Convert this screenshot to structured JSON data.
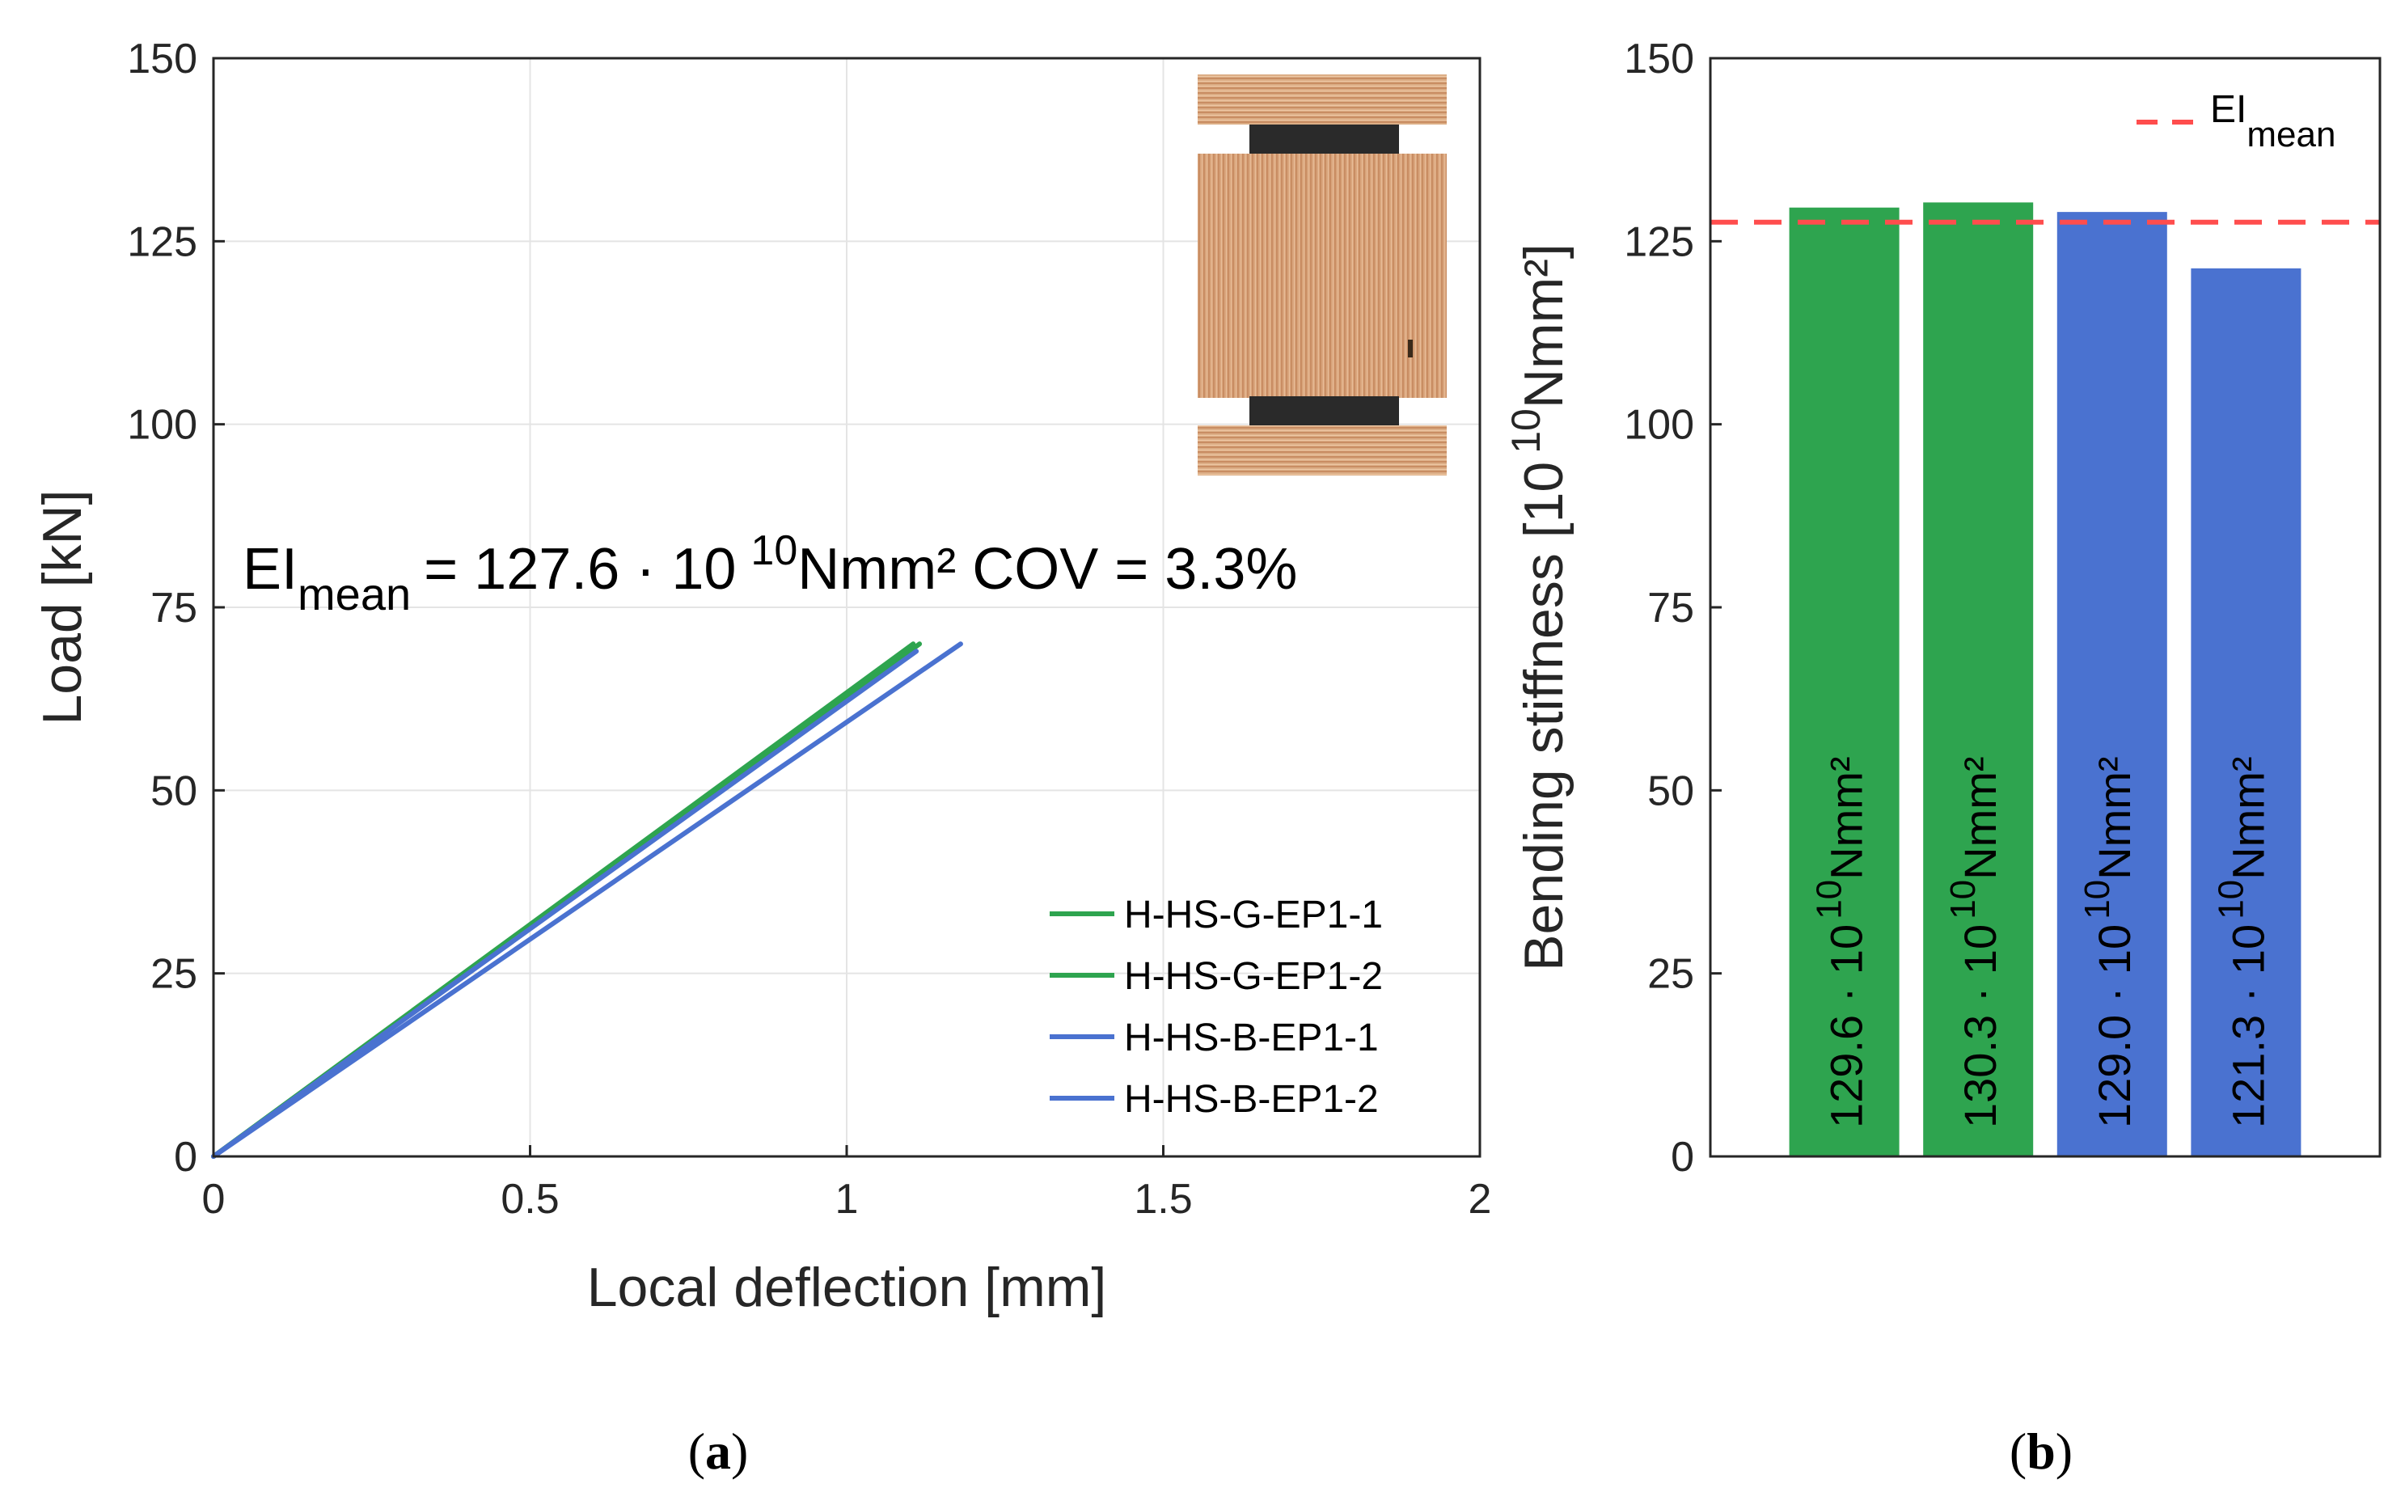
{
  "colors": {
    "green": "#2ea44f",
    "blue": "#4a72d0",
    "mean": "#ff4d4d",
    "axis": "#262626"
  },
  "chart_data": [
    {
      "panel": "a",
      "type": "line",
      "xlabel": "Local deflection [mm]",
      "ylabel": "Load [kN]",
      "xlim": [
        0,
        2
      ],
      "ylim": [
        0,
        150
      ],
      "xticks": [
        "0",
        "0.5",
        "1",
        "1.5",
        "2"
      ],
      "yticks": [
        "0",
        "25",
        "50",
        "75",
        "100",
        "125",
        "150"
      ],
      "grid": true,
      "legend_position": "bottom-right",
      "annotation": {
        "base": "EI",
        "sub": "mean",
        "middle": "= 127.6 · 10",
        "sup": "10",
        "tail": "Nmm² COV = 3.3%"
      },
      "series": [
        {
          "name": "H-HS-G-EP1-1",
          "color": "green",
          "x": [
            0,
            1.105
          ],
          "y": [
            0,
            70
          ]
        },
        {
          "name": "H-HS-G-EP1-2",
          "color": "green",
          "x": [
            0,
            1.115
          ],
          "y": [
            0,
            70
          ]
        },
        {
          "name": "H-HS-B-EP1-1",
          "color": "blue",
          "x": [
            0,
            1.11
          ],
          "y": [
            0,
            69
          ]
        },
        {
          "name": "H-HS-B-EP1-2",
          "color": "blue",
          "x": [
            0,
            1.18
          ],
          "y": [
            0,
            70
          ]
        }
      ],
      "inset": "glued-timber-specimen-photo"
    },
    {
      "panel": "b",
      "type": "bar",
      "ylabel_main": "Bending stiffness [10",
      "ylabel_sup": "10",
      "ylabel_tail": "Nmm²]",
      "ylim": [
        0,
        150
      ],
      "yticks": [
        "0",
        "25",
        "50",
        "75",
        "100",
        "125",
        "150"
      ],
      "values": [
        129.6,
        130.3,
        129.0,
        121.3
      ],
      "colors": [
        "green",
        "green",
        "blue",
        "blue"
      ],
      "bar_labels": [
        {
          "main": "129.6 · 10",
          "sup": "10",
          "tail": "Nmm²"
        },
        {
          "main": "130.3 · 10",
          "sup": "10",
          "tail": "Nmm²"
        },
        {
          "main": "129.0 · 10",
          "sup": "10",
          "tail": "Nmm²"
        },
        {
          "main": "121.3 · 10",
          "sup": "10",
          "tail": "Nmm²"
        }
      ],
      "mean_line": {
        "value": 127.6,
        "legend_base": "EI",
        "legend_sub": "mean",
        "legend_position": "top-right"
      }
    }
  ],
  "captions": {
    "a_open": "(",
    "a_letter": "a",
    "a_close": ")",
    "b_open": "(",
    "b_letter": "b",
    "b_close": ")"
  }
}
